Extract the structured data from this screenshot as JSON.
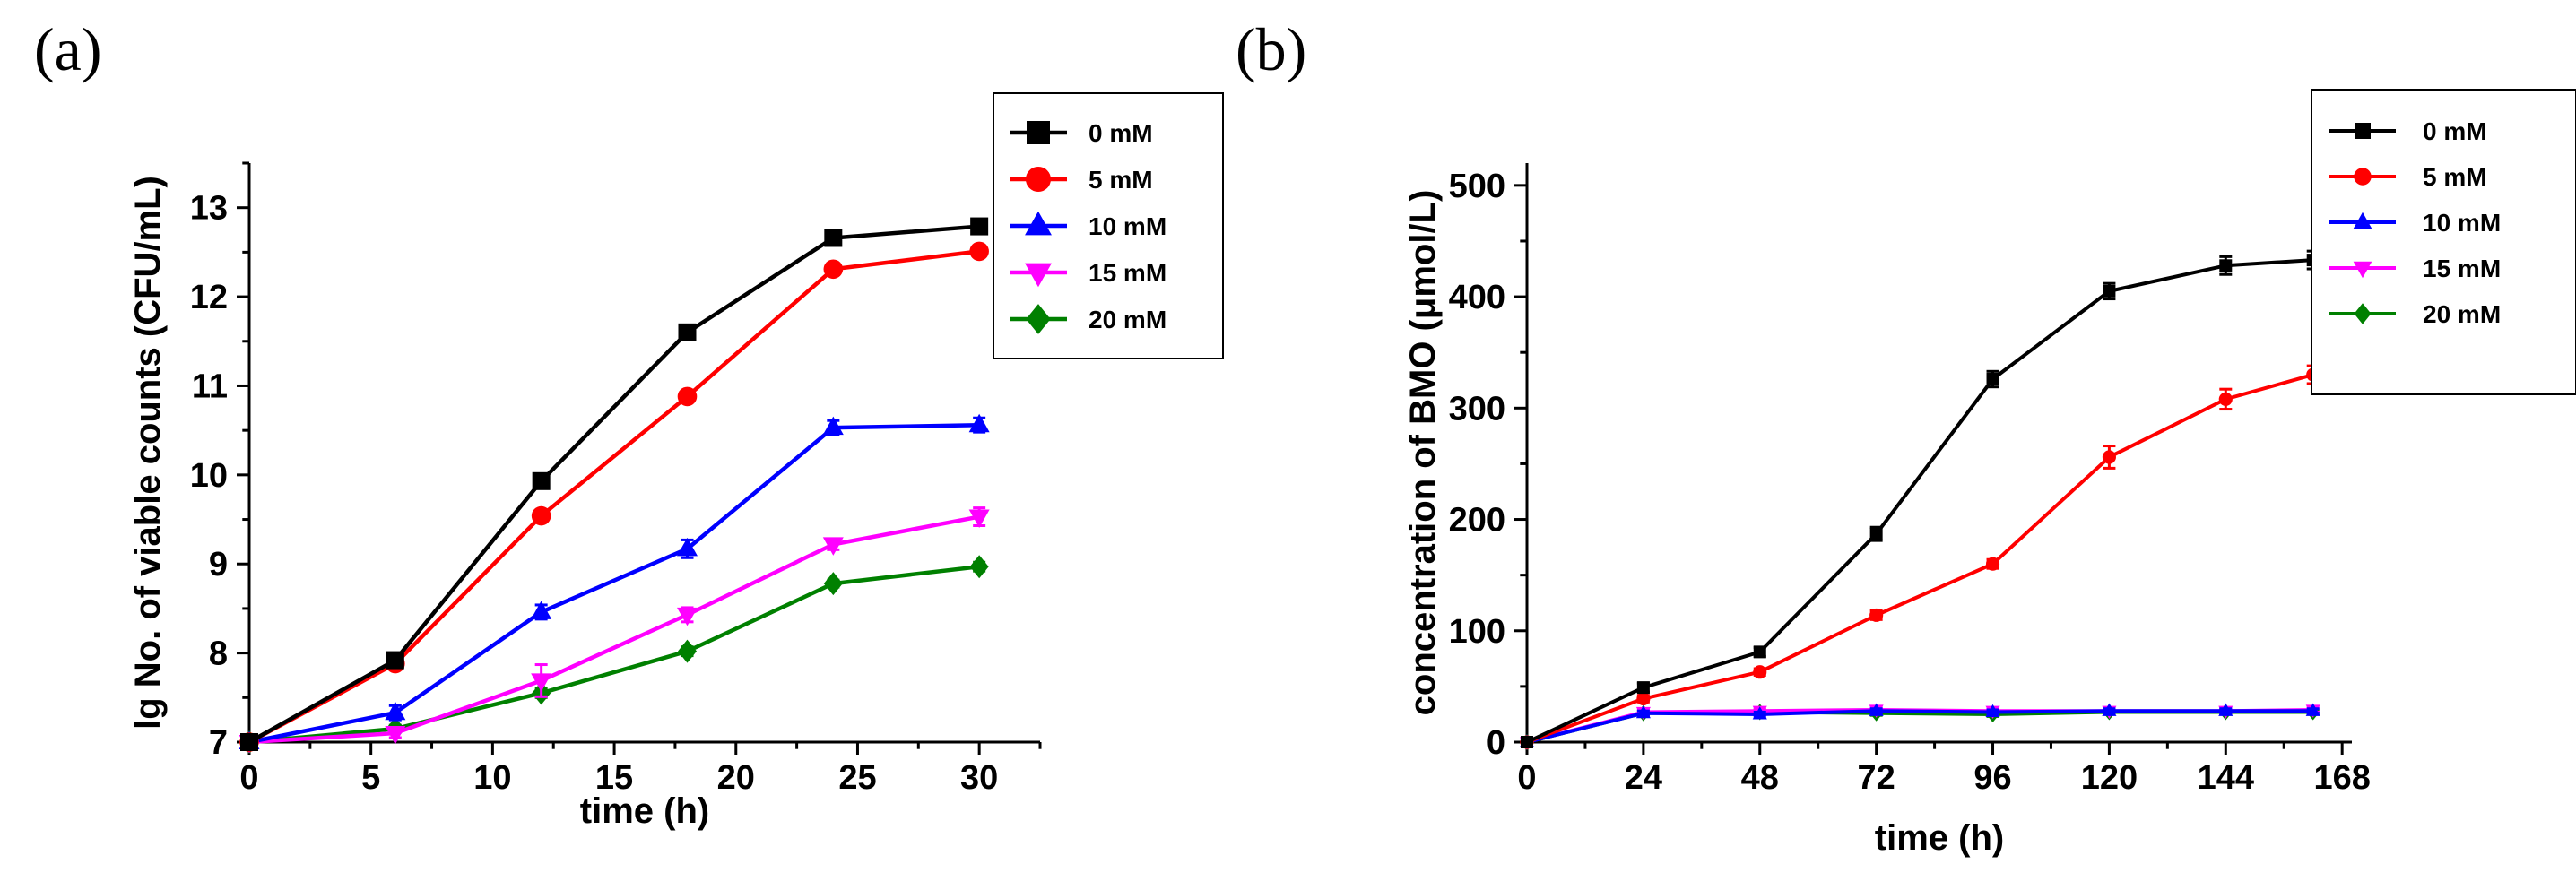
{
  "chart_data": [
    {
      "panel": "(a)",
      "type": "line",
      "title": "",
      "xlabel": "time (h)",
      "ylabel": "lg No. of viable counts (CFU/mL)",
      "xlim": [
        0,
        32.5
      ],
      "ylim": [
        7,
        13.5
      ],
      "xticks": [
        0,
        5,
        10,
        15,
        20,
        25,
        30
      ],
      "yticks": [
        7,
        8,
        9,
        10,
        11,
        12,
        13
      ],
      "x": [
        0,
        6,
        12,
        18,
        24,
        30
      ],
      "legend_position": "top-right",
      "series": [
        {
          "name": "0 mM",
          "color": "#000000",
          "marker": "square",
          "values": [
            7.0,
            7.92,
            9.93,
            11.6,
            12.66,
            12.79
          ],
          "errors": [
            0.02,
            0.04,
            0.05,
            0.04,
            0.04,
            0.05
          ]
        },
        {
          "name": "5 mM",
          "color": "#ff0000",
          "marker": "circle",
          "values": [
            7.0,
            7.88,
            9.54,
            10.88,
            12.31,
            12.51
          ],
          "errors": [
            0.02,
            0.04,
            0.05,
            0.05,
            0.05,
            0.05
          ]
        },
        {
          "name": "10 mM",
          "color": "#0000ff",
          "marker": "triangle-up",
          "values": [
            7.0,
            7.33,
            8.46,
            9.17,
            10.53,
            10.56
          ],
          "errors": [
            0.02,
            0.08,
            0.08,
            0.1,
            0.08,
            0.08
          ]
        },
        {
          "name": "15 mM",
          "color": "#ff00ff",
          "marker": "triangle-down",
          "values": [
            7.0,
            7.1,
            7.69,
            8.43,
            9.22,
            9.53
          ],
          "errors": [
            0.02,
            0.05,
            0.18,
            0.08,
            0.06,
            0.1
          ]
        },
        {
          "name": "20 mM",
          "color": "#008000",
          "marker": "diamond",
          "values": [
            7.0,
            7.15,
            7.55,
            8.02,
            8.78,
            8.97
          ],
          "errors": [
            0.02,
            0.04,
            0.05,
            0.05,
            0.04,
            0.05
          ]
        }
      ]
    },
    {
      "panel": "(b)",
      "type": "line",
      "title": "",
      "xlabel": "time (h)",
      "ylabel": "concentration of BMO (μmol/L)",
      "xlim": [
        0,
        170
      ],
      "ylim": [
        0,
        520
      ],
      "xticks": [
        0,
        24,
        48,
        72,
        96,
        120,
        144,
        168
      ],
      "yticks": [
        0,
        100,
        200,
        300,
        400,
        500
      ],
      "x": [
        0,
        24,
        48,
        72,
        96,
        120,
        144,
        162
      ],
      "legend_position": "top-right",
      "series": [
        {
          "name": "0 mM",
          "color": "#000000",
          "marker": "square",
          "values": [
            0,
            49,
            81,
            187,
            326,
            405,
            428,
            433
          ],
          "errors": [
            0,
            4,
            4,
            6,
            7,
            7,
            8,
            8
          ]
        },
        {
          "name": "5 mM",
          "color": "#ff0000",
          "marker": "circle",
          "values": [
            0,
            39,
            63,
            114,
            160,
            256,
            308,
            330
          ],
          "errors": [
            0,
            3,
            3,
            4,
            4,
            10,
            9,
            8
          ]
        },
        {
          "name": "10 mM",
          "color": "#0000ff",
          "marker": "triangle-up",
          "values": [
            0,
            26,
            25,
            28,
            27,
            28,
            28,
            28
          ],
          "errors": [
            0,
            2,
            2,
            2,
            2,
            2,
            2,
            2
          ]
        },
        {
          "name": "15 mM",
          "color": "#ff00ff",
          "marker": "triangle-down",
          "values": [
            0,
            27,
            28,
            29,
            28,
            28,
            28,
            29
          ],
          "errors": [
            0,
            2,
            2,
            2,
            2,
            2,
            2,
            2
          ]
        },
        {
          "name": "20 mM",
          "color": "#008000",
          "marker": "diamond",
          "values": [
            0,
            26,
            27,
            26,
            25,
            27,
            27,
            27
          ],
          "errors": [
            0,
            2,
            2,
            2,
            2,
            2,
            2,
            2
          ]
        }
      ]
    }
  ]
}
